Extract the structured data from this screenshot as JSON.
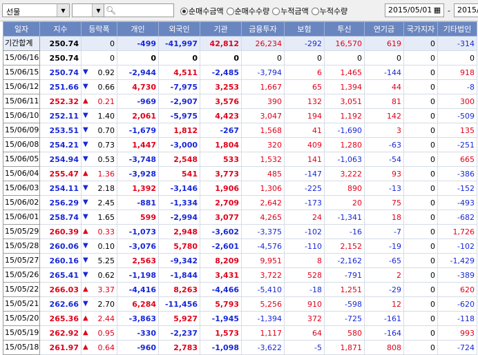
{
  "toolbar": {
    "instrument": "선물",
    "radios": [
      {
        "label": "순매수금액",
        "selected": true
      },
      {
        "label": "순매수수량",
        "selected": false
      },
      {
        "label": "누적금액",
        "selected": false
      },
      {
        "label": "누적수량",
        "selected": false
      }
    ],
    "date_from": "2015/05/01",
    "date_sep": "-",
    "date_to": "2015/"
  },
  "table": {
    "columns": [
      "일자",
      "지수",
      "등락폭",
      "개인",
      "외국인",
      "기관",
      "금융투자",
      "보험",
      "투신",
      "연기금",
      "국가지자",
      "기타법인"
    ],
    "total_row": [
      "기간합계",
      "250.74",
      "0",
      "-499",
      "-41,997",
      "42,812",
      "26,234",
      "-292",
      "16,570",
      "619",
      "0",
      "-314"
    ],
    "rows": [
      [
        "15/06/16",
        "250.74",
        "",
        "0",
        "0",
        "0",
        "0",
        "0",
        "0",
        "0",
        "0",
        "0",
        "0"
      ],
      [
        "15/06/15",
        "250.74",
        "down",
        "0.92",
        "-2,944",
        "4,511",
        "-2,485",
        "-3,794",
        "6",
        "1,465",
        "-144",
        "0",
        "918"
      ],
      [
        "15/06/12",
        "251.66",
        "down",
        "0.66",
        "4,730",
        "-7,975",
        "3,253",
        "1,667",
        "65",
        "1,394",
        "44",
        "0",
        "-8"
      ],
      [
        "15/06/11",
        "252.32",
        "up",
        "0.21",
        "-969",
        "-2,907",
        "3,576",
        "390",
        "132",
        "3,051",
        "81",
        "0",
        "300"
      ],
      [
        "15/06/10",
        "252.11",
        "down",
        "1.40",
        "2,061",
        "-5,975",
        "4,423",
        "3,047",
        "194",
        "1,192",
        "142",
        "0",
        "-509"
      ],
      [
        "15/06/09",
        "253.51",
        "down",
        "0.70",
        "-1,679",
        "1,812",
        "-267",
        "1,568",
        "41",
        "-1,690",
        "3",
        "0",
        "135"
      ],
      [
        "15/06/08",
        "254.21",
        "down",
        "0.73",
        "1,447",
        "-3,000",
        "1,804",
        "320",
        "409",
        "1,280",
        "-63",
        "0",
        "-251"
      ],
      [
        "15/06/05",
        "254.94",
        "down",
        "0.53",
        "-3,748",
        "2,548",
        "533",
        "1,532",
        "141",
        "-1,063",
        "-54",
        "0",
        "665"
      ],
      [
        "15/06/04",
        "255.47",
        "up",
        "1.36",
        "-3,928",
        "541",
        "3,773",
        "485",
        "-147",
        "3,222",
        "93",
        "0",
        "-386"
      ],
      [
        "15/06/03",
        "254.11",
        "down",
        "2.18",
        "1,392",
        "-3,146",
        "1,906",
        "1,306",
        "-225",
        "890",
        "-13",
        "0",
        "-152"
      ],
      [
        "15/06/02",
        "256.29",
        "down",
        "2.45",
        "-881",
        "-1,334",
        "2,709",
        "2,642",
        "-173",
        "20",
        "75",
        "0",
        "-493"
      ],
      [
        "15/06/01",
        "258.74",
        "down",
        "1.65",
        "599",
        "-2,994",
        "3,077",
        "4,265",
        "24",
        "-1,341",
        "18",
        "0",
        "-682"
      ],
      [
        "15/05/29",
        "260.39",
        "up",
        "0.33",
        "-1,073",
        "2,948",
        "-3,602",
        "-3,375",
        "-102",
        "-16",
        "-7",
        "0",
        "1,726"
      ],
      [
        "15/05/28",
        "260.06",
        "down",
        "0.10",
        "-3,076",
        "5,780",
        "-2,601",
        "-4,576",
        "-110",
        "2,152",
        "-19",
        "0",
        "-102"
      ],
      [
        "15/05/27",
        "260.16",
        "down",
        "5.25",
        "2,563",
        "-9,342",
        "8,209",
        "9,951",
        "8",
        "-2,162",
        "-65",
        "0",
        "-1,429"
      ],
      [
        "15/05/26",
        "265.41",
        "down",
        "0.62",
        "-1,198",
        "-1,844",
        "3,431",
        "3,722",
        "528",
        "-791",
        "2",
        "0",
        "-389"
      ],
      [
        "15/05/22",
        "266.03",
        "up",
        "3.37",
        "-4,416",
        "8,263",
        "-4,466",
        "-5,410",
        "-18",
        "1,251",
        "-29",
        "0",
        "620"
      ],
      [
        "15/05/21",
        "262.66",
        "down",
        "2.70",
        "6,284",
        "-11,456",
        "5,793",
        "5,256",
        "910",
        "-598",
        "12",
        "0",
        "-620"
      ],
      [
        "15/05/20",
        "265.36",
        "up",
        "2.44",
        "-3,863",
        "5,927",
        "-1,945",
        "-1,394",
        "372",
        "-725",
        "-161",
        "0",
        "-118"
      ],
      [
        "15/05/19",
        "262.92",
        "up",
        "0.95",
        "-330",
        "-2,237",
        "1,573",
        "1,117",
        "64",
        "580",
        "-164",
        "0",
        "993"
      ],
      [
        "15/05/18",
        "261.97",
        "up",
        "0.64",
        "-960",
        "2,783",
        "-1,098",
        "-3,622",
        "-5",
        "1,871",
        "808",
        "0",
        "-724"
      ]
    ]
  },
  "colors": {
    "up": "#e0001a",
    "down": "#1727d8",
    "header_bg": "#6a86c0",
    "total_bg": "#e6ecf7"
  },
  "icons": {
    "up": "▲",
    "down": "▼",
    "search": "search-icon",
    "calendar": "calendar-icon"
  }
}
